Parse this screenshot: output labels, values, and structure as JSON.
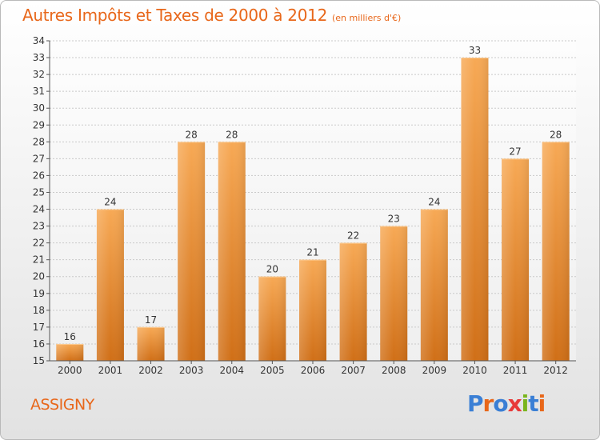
{
  "title": "Autres Impôts et Taxes de 2000 à 2012",
  "unit": "(en milliers d'€)",
  "commune": "ASSIGNY",
  "logo": {
    "text": "Proxiti",
    "letter_colors": [
      "#3a7fd5",
      "#e8671a",
      "#3a7fd5",
      "#e83a3a",
      "#7ab51d",
      "#3a7fd5",
      "#e8671a"
    ]
  },
  "colors": {
    "title": "#e8671a",
    "bar_light": "#f7a955",
    "bar_dark": "#d06f17",
    "grid": "#c9c9c9"
  },
  "chart_data": {
    "type": "bar",
    "categories": [
      "2000",
      "2001",
      "2002",
      "2003",
      "2004",
      "2005",
      "2006",
      "2007",
      "2008",
      "2009",
      "2010",
      "2011",
      "2012"
    ],
    "values": [
      16,
      24,
      17,
      28,
      28,
      20,
      21,
      22,
      23,
      24,
      33,
      27,
      28
    ],
    "ylim": [
      15,
      34
    ],
    "yticks": [
      15,
      16,
      17,
      18,
      19,
      20,
      21,
      22,
      23,
      24,
      25,
      26,
      27,
      28,
      29,
      30,
      31,
      32,
      33,
      34
    ],
    "grid": true,
    "data_labels": true
  }
}
